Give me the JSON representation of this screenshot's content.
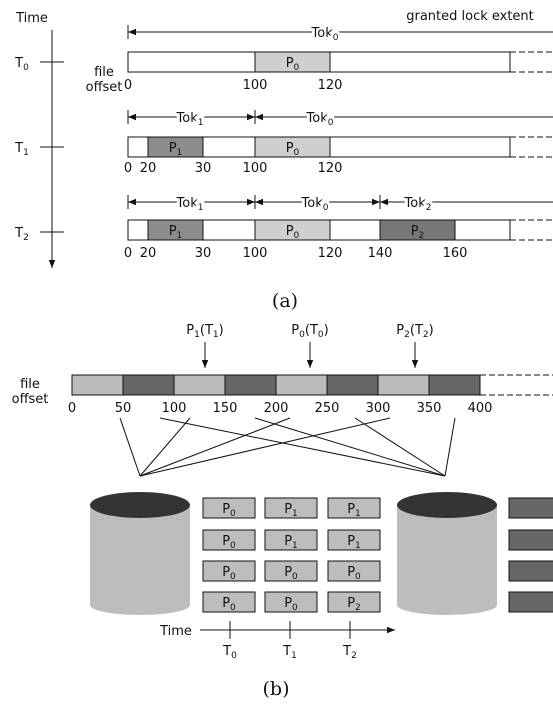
{
  "panel_a": {
    "time_label": "Time",
    "legend": "granted lock extent",
    "offset_label": {
      "line1": "file",
      "line2": "offset"
    },
    "rows": [
      {
        "time": [
          {
            "t": "T",
            "sub": "0"
          }
        ],
        "extents": [
          [
            {
              "t": "Tok",
              "sub": "0"
            }
          ]
        ],
        "blocks": [
          {
            "label": [
              {
                "t": "P",
                "sub": "0"
              }
            ],
            "color": "#cfcfcf"
          }
        ],
        "ticks": [
          0,
          100,
          120
        ]
      },
      {
        "time": [
          {
            "t": "T",
            "sub": "1"
          }
        ],
        "extents": [
          [
            {
              "t": "Tok",
              "sub": "1"
            }
          ],
          [
            {
              "t": "Tok",
              "sub": "0"
            }
          ]
        ],
        "blocks": [
          {
            "label": [
              {
                "t": "P",
                "sub": "1"
              }
            ],
            "color": "#8c8c8c"
          },
          {
            "label": [
              {
                "t": "P",
                "sub": "0"
              }
            ],
            "color": "#cfcfcf"
          }
        ],
        "ticks": [
          0,
          20,
          30,
          100,
          120
        ]
      },
      {
        "time": [
          {
            "t": "T",
            "sub": "2"
          }
        ],
        "extents": [
          [
            {
              "t": "Tok",
              "sub": "1"
            }
          ],
          [
            {
              "t": "Tok",
              "sub": "0"
            }
          ],
          [
            {
              "t": "Tok",
              "sub": "2"
            }
          ]
        ],
        "blocks": [
          {
            "label": [
              {
                "t": "P",
                "sub": "1"
              }
            ],
            "color": "#8c8c8c"
          },
          {
            "label": [
              {
                "t": "P",
                "sub": "0"
              }
            ],
            "color": "#cfcfcf"
          },
          {
            "label": [
              {
                "t": "P",
                "sub": "2"
              }
            ],
            "color": "#777777"
          }
        ],
        "ticks": [
          0,
          20,
          30,
          100,
          120,
          140,
          160
        ]
      }
    ],
    "caption": "(a)"
  },
  "panel_b": {
    "writers": [
      [
        {
          "t": "P",
          "sub": "1"
        },
        {
          "t": "(T",
          "sub": "1"
        },
        {
          "t": ")"
        }
      ],
      [
        {
          "t": "P",
          "sub": "0"
        },
        {
          "t": "(T",
          "sub": "0"
        },
        {
          "t": ")"
        }
      ],
      [
        {
          "t": "P",
          "sub": "2"
        },
        {
          "t": "(T",
          "sub": "2"
        },
        {
          "t": ")"
        }
      ]
    ],
    "offset_label": {
      "line1": "file",
      "line2": "offset"
    },
    "offsets": [
      0,
      50,
      100,
      150,
      200,
      250,
      300,
      350,
      400
    ],
    "grid": [
      [
        [
          {
            "t": "P",
            "sub": "0"
          }
        ],
        [
          {
            "t": "P",
            "sub": "1"
          }
        ],
        [
          {
            "t": "P",
            "sub": "1"
          }
        ]
      ],
      [
        [
          {
            "t": "P",
            "sub": "0"
          }
        ],
        [
          {
            "t": "P",
            "sub": "1"
          }
        ],
        [
          {
            "t": "P",
            "sub": "1"
          }
        ]
      ],
      [
        [
          {
            "t": "P",
            "sub": "0"
          }
        ],
        [
          {
            "t": "P",
            "sub": "0"
          }
        ],
        [
          {
            "t": "P",
            "sub": "0"
          }
        ]
      ],
      [
        [
          {
            "t": "P",
            "sub": "0"
          }
        ],
        [
          {
            "t": "P",
            "sub": "0"
          }
        ],
        [
          {
            "t": "P",
            "sub": "2"
          }
        ]
      ]
    ],
    "time_label": "Time",
    "times": [
      [
        {
          "t": "T",
          "sub": "0"
        }
      ],
      [
        {
          "t": "T",
          "sub": "1"
        }
      ],
      [
        {
          "t": "T",
          "sub": "2"
        }
      ]
    ],
    "caption": "(b)"
  }
}
